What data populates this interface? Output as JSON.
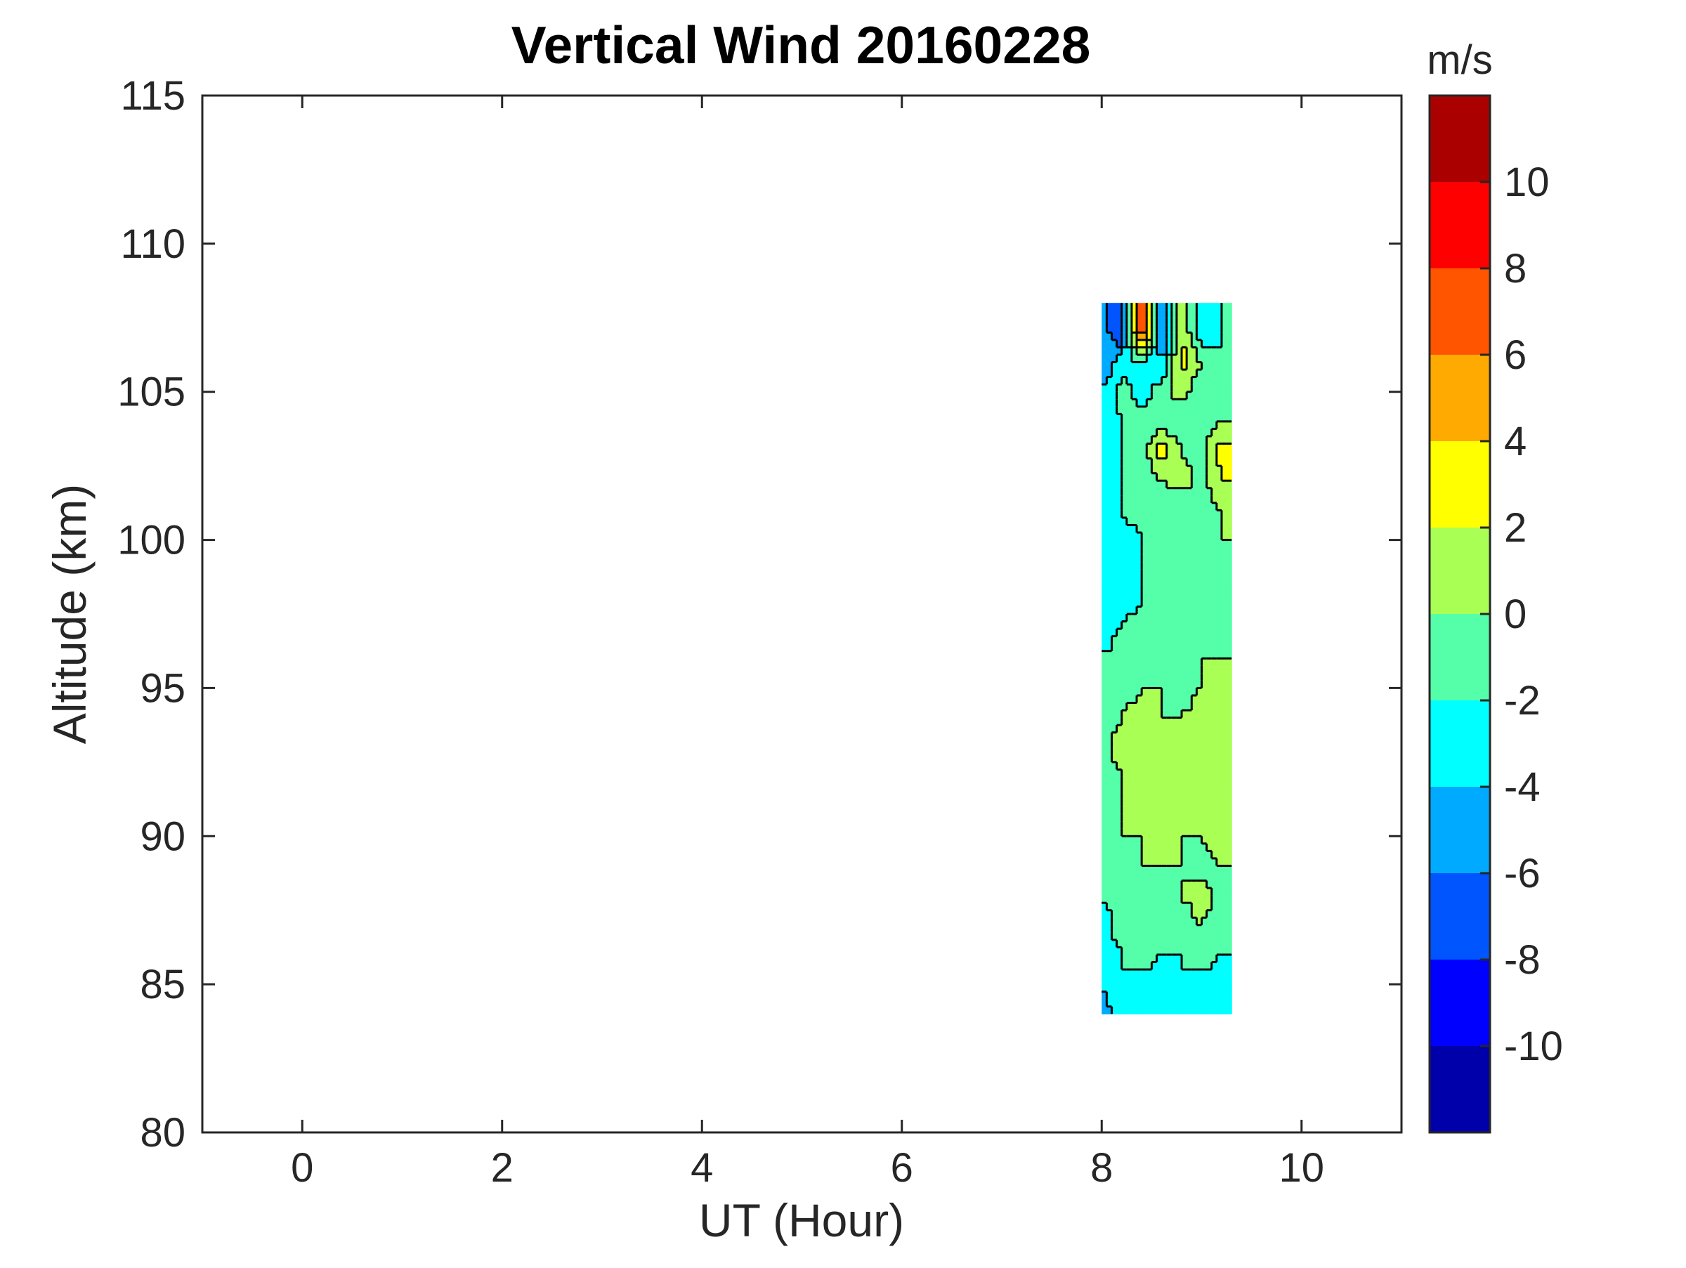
{
  "chart_data": {
    "type": "heatmap",
    "subtype": "filled-contour",
    "title": "Vertical Wind 20160228",
    "xlabel": "UT (Hour)",
    "ylabel": "Altitude (km)",
    "xlim": [
      -1,
      11
    ],
    "ylim": [
      80,
      115
    ],
    "xticks": [
      0,
      2,
      4,
      6,
      8,
      10
    ],
    "yticks": [
      80,
      85,
      90,
      95,
      100,
      105,
      110,
      115
    ],
    "grid": false,
    "colorbar": {
      "unit_label": "m/s",
      "range": [
        -12,
        12
      ],
      "ticks": [
        -10,
        -8,
        -6,
        -4,
        -2,
        0,
        2,
        4,
        6,
        8,
        10
      ],
      "levels": [
        {
          "from": -12,
          "to": -10,
          "color": "#0000AA"
        },
        {
          "from": -10,
          "to": -8,
          "color": "#0000FF"
        },
        {
          "from": -8,
          "to": -6,
          "color": "#0055FF"
        },
        {
          "from": -6,
          "to": -4,
          "color": "#00AAFF"
        },
        {
          "from": -4,
          "to": -2,
          "color": "#00FFFF"
        },
        {
          "from": -2,
          "to": 0,
          "color": "#55FFAA"
        },
        {
          "from": 0,
          "to": 2,
          "color": "#AAFF55"
        },
        {
          "from": 2,
          "to": 4,
          "color": "#FFFF00"
        },
        {
          "from": 4,
          "to": 6,
          "color": "#FFAA00"
        },
        {
          "from": 6,
          "to": 8,
          "color": "#FF5500"
        },
        {
          "from": 8,
          "to": 10,
          "color": "#FF0000"
        },
        {
          "from": 10,
          "to": 12,
          "color": "#AA0000"
        }
      ]
    },
    "data_coverage": {
      "ut_hours": [
        8.0,
        9.3
      ],
      "altitude_km": [
        84,
        108
      ]
    },
    "field": {
      "x": [
        8.0,
        8.2,
        8.4,
        8.6,
        8.8,
        9.0,
        9.2
      ],
      "y": [
        84,
        85,
        86,
        87,
        88,
        89,
        90,
        91,
        92,
        93,
        94,
        95,
        96,
        97,
        98,
        99,
        100,
        101,
        102,
        103,
        104,
        105,
        106,
        107
      ],
      "values_m_per_s": [
        [
          -5,
          -3,
          -4,
          -2,
          -3,
          -3,
          -3
        ],
        [
          -4,
          -2,
          -3,
          -3,
          -2,
          -3,
          -3
        ],
        [
          -3,
          -2,
          -1,
          -2,
          -2,
          -1,
          -2
        ],
        [
          -3,
          -1,
          -1,
          0,
          -1,
          0,
          -1
        ],
        [
          -2,
          -1,
          0,
          -1,
          0,
          1,
          -1
        ],
        [
          -2,
          -1,
          0,
          0,
          0,
          -1,
          0
        ],
        [
          -1,
          0,
          0,
          1,
          0,
          0,
          1
        ],
        [
          -1,
          0,
          1,
          0,
          1,
          1,
          0
        ],
        [
          -1,
          0,
          1,
          1,
          0,
          1,
          0
        ],
        [
          -1,
          1,
          1,
          0,
          1,
          1,
          1
        ],
        [
          -1,
          0,
          1,
          0,
          0,
          1,
          1
        ],
        [
          -2,
          -1,
          0,
          0,
          -1,
          0,
          1
        ],
        [
          -2,
          -1,
          -1,
          0,
          -1,
          0,
          0
        ],
        [
          -3,
          -2,
          -1,
          -1,
          0,
          -1,
          -1
        ],
        [
          -3,
          -3,
          -2,
          -1,
          -1,
          -1,
          -1
        ],
        [
          -3,
          -2,
          -2,
          -1,
          -2,
          -1,
          -1
        ],
        [
          -3,
          -3,
          -2,
          -1,
          -1,
          -1,
          0
        ],
        [
          -4,
          -2,
          -1,
          -1,
          -2,
          -1,
          0
        ],
        [
          -3,
          -2,
          -2,
          0,
          1,
          -1,
          2
        ],
        [
          -3,
          -2,
          -1,
          3,
          0,
          -1,
          3
        ],
        [
          -4,
          -2,
          -1,
          -1,
          -2,
          -1,
          0
        ],
        [
          -4,
          -1,
          -3,
          -1,
          1,
          -2,
          -1
        ],
        [
          -6,
          -3,
          -2,
          -4,
          3,
          0,
          -2
        ],
        [
          -5,
          -8,
          9,
          -7,
          2,
          -4,
          -2
        ]
      ]
    }
  }
}
